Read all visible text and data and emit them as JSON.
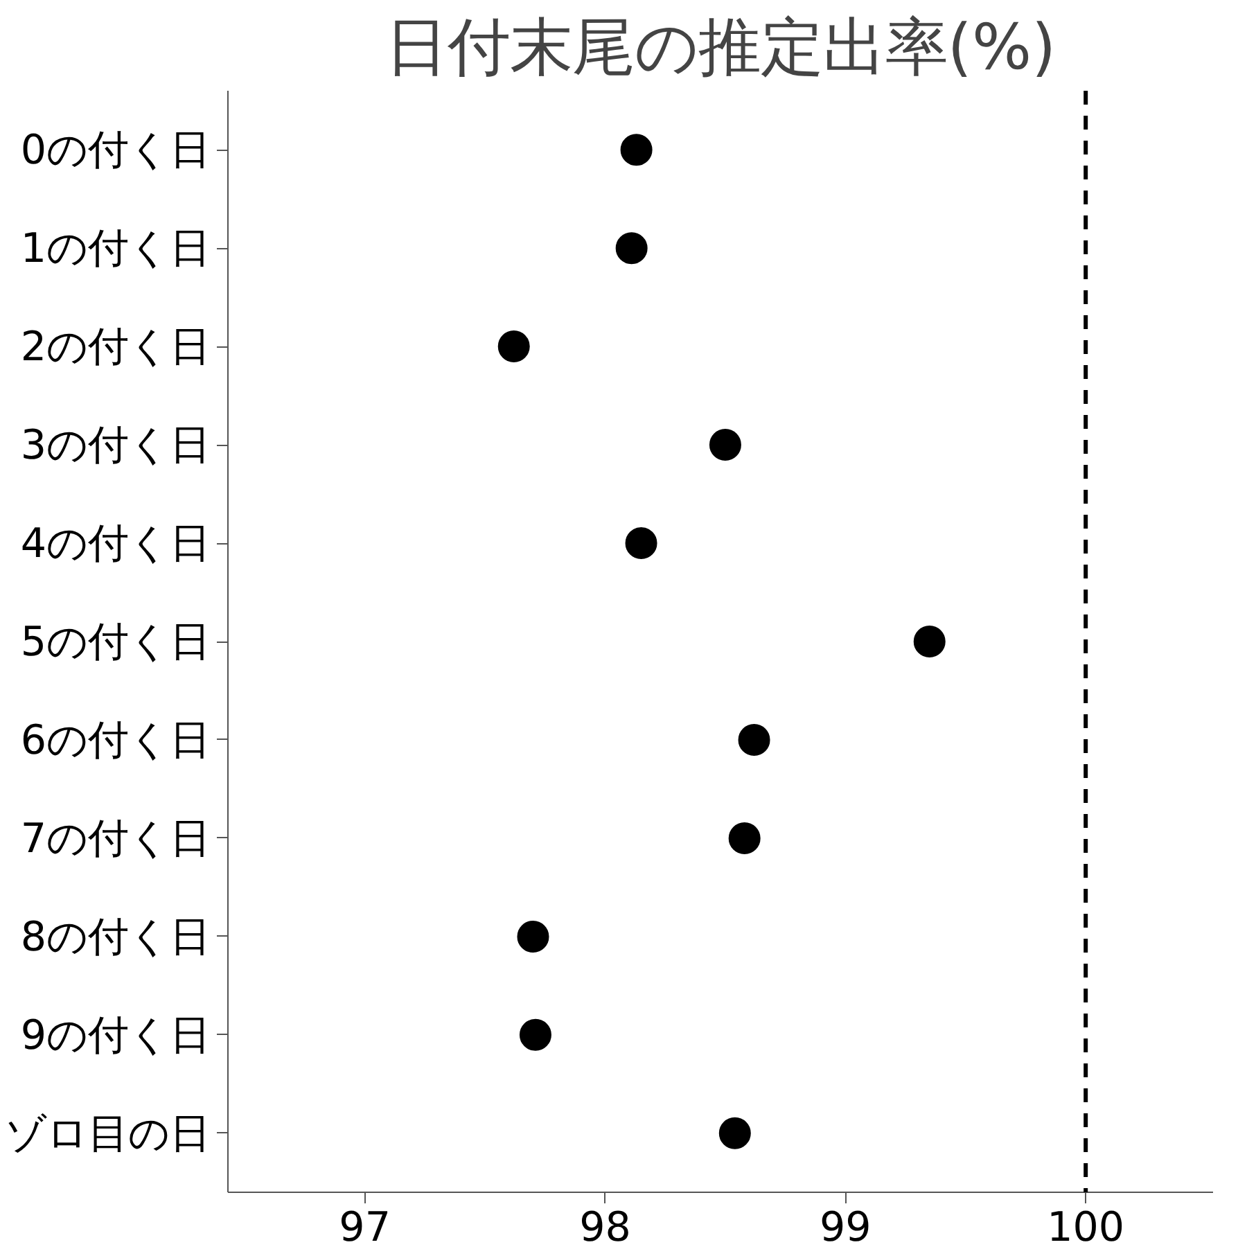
{
  "chart_data": {
    "type": "scatter",
    "orientation": "horizontal",
    "title": "日付末尾の推定出率(%)",
    "categories": [
      "0の付く日",
      "1の付く日",
      "2の付く日",
      "3の付く日",
      "4の付く日",
      "5の付く日",
      "6の付く日",
      "7の付く日",
      "8の付く日",
      "9の付く日",
      "ゾロ目の日"
    ],
    "series": [
      {
        "color": "#000000",
        "values": [
          98.13,
          98.11,
          97.62,
          98.5,
          98.15,
          99.35,
          98.62,
          98.58,
          97.7,
          97.71,
          98.54
        ]
      }
    ],
    "xlim": [
      96.43,
      100.53
    ],
    "xticks": [
      97,
      98,
      99,
      100
    ],
    "ref_lines": [
      {
        "axis": "x",
        "value": 100,
        "color": "#000000",
        "line_style": "dashed"
      }
    ],
    "marker": "circle",
    "grid": false
  }
}
